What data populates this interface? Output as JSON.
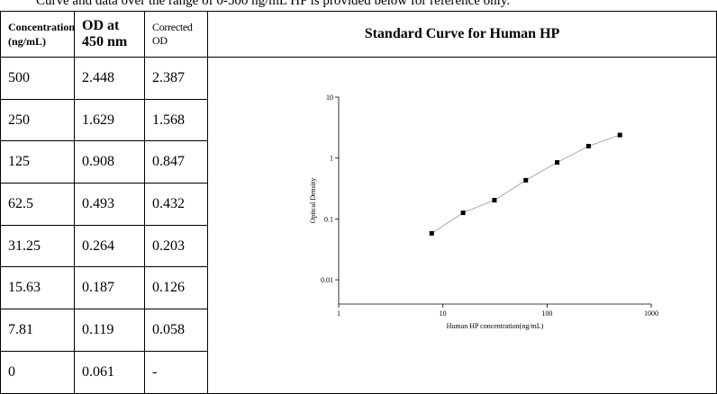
{
  "intro": "Curve and data over the range of 0-500 ng/mL HP is provided below for reference only.",
  "table": {
    "headers": [
      "Concentration (ng/mL)",
      "OD at 450 nm",
      "Corrected OD",
      "Standard Curve for Human HP"
    ],
    "rows": [
      [
        "500",
        "2.448",
        "2.387"
      ],
      [
        "250",
        "1.629",
        "1.568"
      ],
      [
        "125",
        "0.908",
        "0.847"
      ],
      [
        "62.5",
        "0.493",
        "0.432"
      ],
      [
        "31.25",
        "0.264",
        "0.203"
      ],
      [
        "15.63",
        "0.187",
        "0.126"
      ],
      [
        "7.81",
        "0.119",
        "0.058"
      ],
      [
        "0",
        "0.061",
        "-"
      ]
    ]
  },
  "chart_data": {
    "type": "scatter",
    "x_label": "Human HP concentration(ng/mL)",
    "y_label": "Optical Density",
    "x": [
      7.81,
      15.63,
      31.25,
      62.5,
      125,
      250,
      500
    ],
    "values": [
      0.058,
      0.126,
      0.203,
      0.432,
      0.847,
      1.568,
      2.387
    ],
    "color": "#000000",
    "log_x": true,
    "log_y": true,
    "xlim": [
      1,
      1000
    ],
    "ylim": [
      0.004,
      10
    ],
    "xticks": [
      1,
      10,
      100,
      1000
    ],
    "yticks": [
      0.01,
      0.1,
      1,
      10
    ],
    "fit_line": true
  }
}
